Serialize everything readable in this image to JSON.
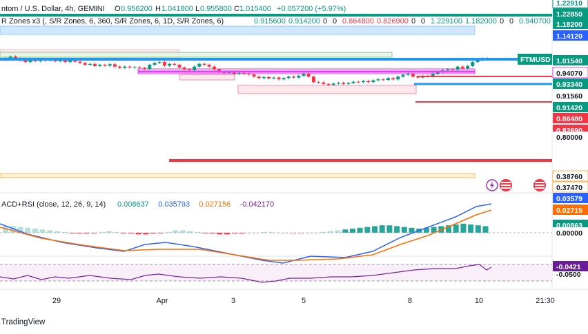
{
  "header": {
    "symbol_line": "ntom / U.S. Dollar, 4h, GEMINI",
    "open_label": "O",
    "open": "0.956200",
    "high_label": "H",
    "high": "1.041800",
    "low_label": "L",
    "low": "0.955800",
    "close_label": "C",
    "close": "1.015400",
    "change": "+0.057200 (+5.97%)",
    "indicator_line": "R Zones x3 (, S/R Zones, 6, 360, S/R Zones, 6, 1D, S/R Zones, 6)",
    "indicator_values": [
      "0.915600",
      "0.914200",
      "0",
      "0",
      "0.864800",
      "0.826900",
      "0",
      "0",
      "1.229100",
      "1.182000",
      "0",
      "0",
      "0.940700"
    ]
  },
  "price_badges": [
    {
      "text": "1.22910",
      "bg": "#ffffff",
      "fg": "#089981",
      "border": "#089981"
    },
    {
      "text": "1.22850",
      "bg": "#089981",
      "fg": "#ffffff"
    },
    {
      "text": "1.18200",
      "bg": "#089981",
      "fg": "#ffffff"
    },
    {
      "text": "1.14120",
      "bg": "#2962ff",
      "fg": "#ffffff"
    },
    {
      "text": "1.01540",
      "bg": "#089981",
      "fg": "#ffffff"
    },
    {
      "text": "0.94070",
      "bg": "#ffffff",
      "fg": "#131722",
      "border": "#e040fb"
    },
    {
      "text": "0.93340",
      "bg": "#089981",
      "fg": "#ffffff"
    },
    {
      "text": "0.91560",
      "bg": "#ffffff",
      "fg": "#131722"
    },
    {
      "text": "0.91420",
      "bg": "#089981",
      "fg": "#ffffff"
    },
    {
      "text": "0.86480",
      "bg": "#f23645",
      "fg": "#ffffff"
    },
    {
      "text": "0.82690",
      "bg": "#f23645",
      "fg": "#ffffff"
    },
    {
      "text": "0.80000",
      "bg": "#ffffff",
      "fg": "#131722"
    },
    {
      "text": "0.38760",
      "bg": "#ffffff",
      "fg": "#131722",
      "border": "#ffb74d"
    },
    {
      "text": "0.37470",
      "bg": "#ffffff",
      "fg": "#131722",
      "border": "#ffb74d"
    }
  ],
  "symbol_tag": {
    "text": "FTMUSD",
    "bg": "#089981",
    "fg": "#ffffff"
  },
  "macd": {
    "label": "ACD+RSI (close, 12, 26, 9, 14)",
    "values": [
      "0.008637",
      "0.035793",
      "0.027156",
      "-0.042170"
    ],
    "value_colors": [
      "#089981",
      "#2962ff",
      "#ff6d00",
      "#7b1fa2"
    ],
    "badges": [
      {
        "text": "0.03579",
        "bg": "#2962ff",
        "fg": "#ffffff"
      },
      {
        "text": "0.02715",
        "bg": "#ff6d00",
        "fg": "#ffffff"
      },
      {
        "text": "0.00863",
        "bg": "#089981",
        "fg": "#ffffff"
      },
      {
        "text": "0.00000",
        "bg": "#ffffff",
        "fg": "#131722"
      }
    ],
    "rsi_badge": {
      "text": "-0.0421",
      "bg": "#6a1b9a",
      "fg": "#ffffff"
    },
    "rsi_axis": "-0.0500"
  },
  "time_axis": [
    "29",
    "Apr",
    "3",
    "5",
    "8",
    "10",
    "21:30"
  ],
  "brand": "TradingView",
  "colors": {
    "up": "#089981",
    "down": "#f23645",
    "macd": "#2962ff",
    "signal": "#ff6d00",
    "rsi": "#7b1fa2",
    "zone": "#e040fb"
  },
  "chart_data": {
    "type": "candlestick",
    "symbol": "FTMUSD",
    "timeframe": "4h",
    "exchange": "GEMINI",
    "x_ticks": [
      "29",
      "Apr",
      "3",
      "5",
      "8",
      "10",
      "21:30"
    ],
    "ohlc_last": {
      "open": 0.9562,
      "high": 1.0418,
      "low": 0.9558,
      "close": 1.0154
    },
    "candles_close": [
      1.02,
      1.03,
      1.018,
      1.01,
      1.0,
      1.012,
      1.005,
      1.015,
      1.008,
      1.012,
      1.004,
      1.01,
      1.0,
      1.008,
      1.002,
      0.995,
      0.985,
      0.99,
      0.978,
      0.985,
      0.98,
      0.988,
      0.975,
      0.968,
      0.975,
      0.97,
      0.972,
      0.968,
      0.962,
      0.985,
      0.995,
      1.0,
      0.98,
      0.99,
      0.985,
      0.97,
      0.96,
      0.955,
      0.975,
      0.99,
      0.985,
      0.975,
      0.96,
      0.945,
      0.94,
      0.948,
      0.935,
      0.94,
      0.935,
      0.932,
      0.92,
      0.912,
      0.918,
      0.91,
      0.915,
      0.905,
      0.912,
      0.92,
      0.915,
      0.925,
      0.935,
      0.92,
      0.89,
      0.888,
      0.88,
      0.875,
      0.882,
      0.886,
      0.88,
      0.885,
      0.892,
      0.89,
      0.896,
      0.89,
      0.9,
      0.905,
      0.902,
      0.912,
      0.905,
      0.92,
      0.93,
      0.935,
      0.92,
      0.915,
      0.925,
      0.92,
      0.935,
      0.945,
      0.955,
      0.96,
      0.958,
      0.975,
      0.965,
      0.978,
      1.0,
      1.01,
      1.02,
      1.015
    ],
    "sr_levels": [
      1.2291,
      1.2285,
      1.182,
      1.1412,
      1.0154,
      0.9407,
      0.9334,
      0.9156,
      0.9142,
      0.8648,
      0.8269,
      0.3876,
      0.3747
    ],
    "macd_last": {
      "histogram": 0.008637,
      "macd": 0.035793,
      "signal": 0.027156,
      "rsi_osc": -0.04217
    },
    "y_range": [
      0.36,
      1.26
    ]
  }
}
